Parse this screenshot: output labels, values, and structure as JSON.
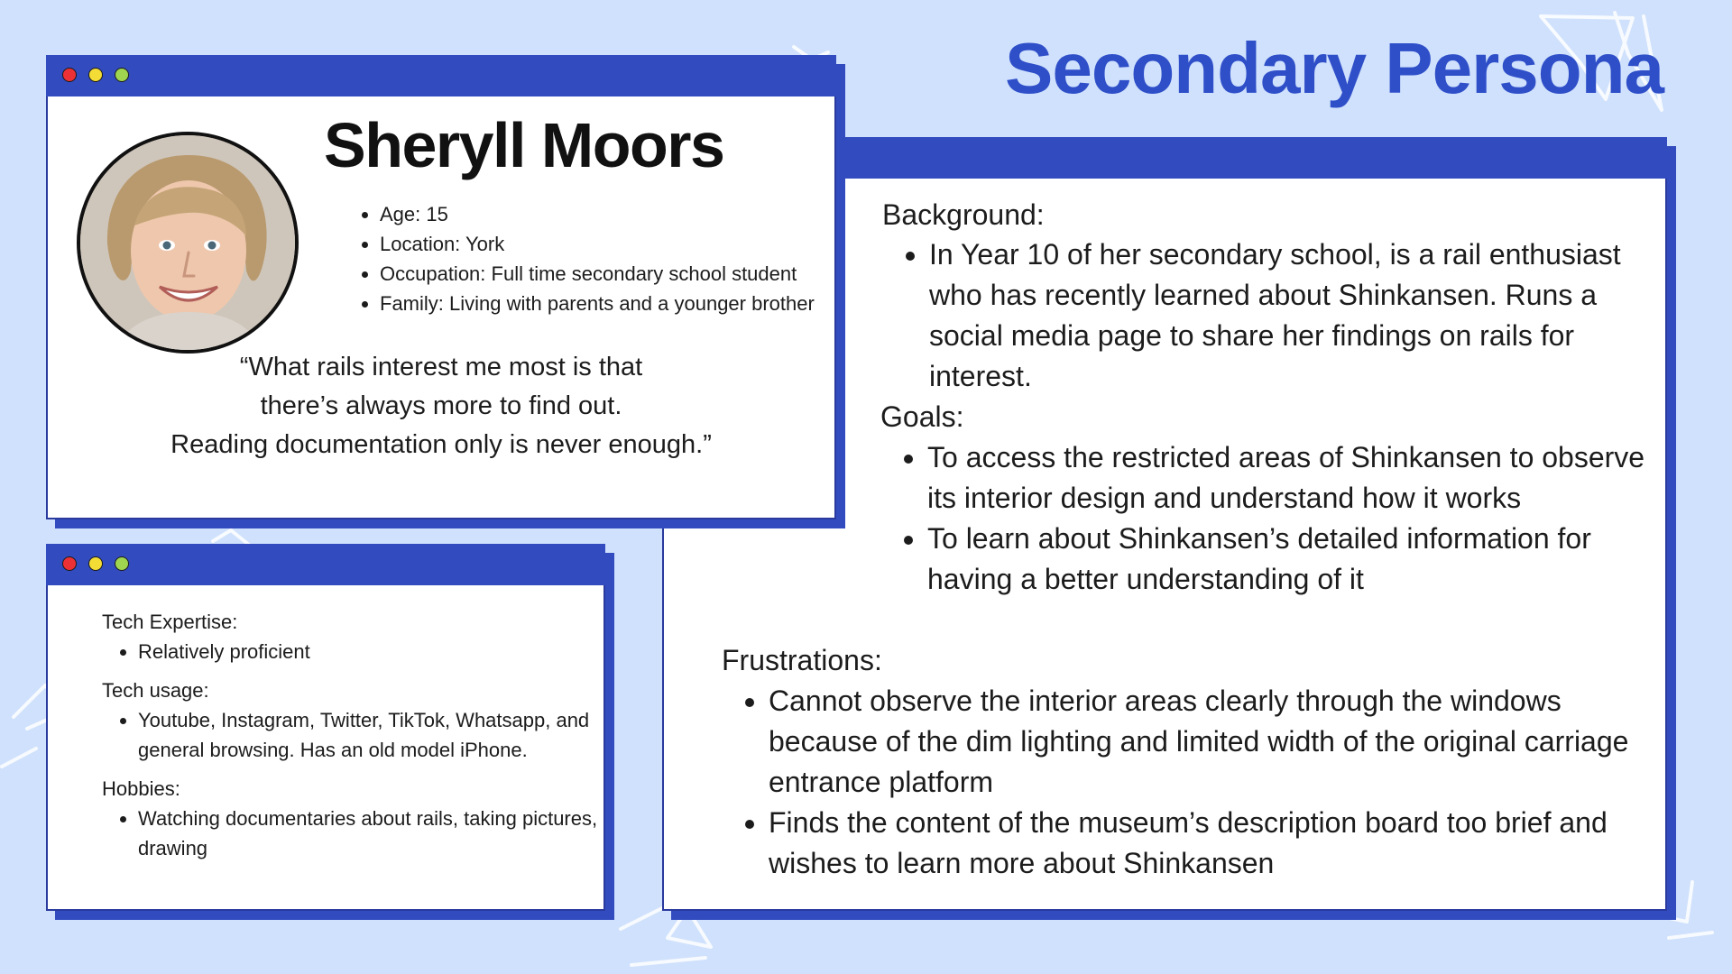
{
  "page": {
    "title": "Secondary Persona"
  },
  "colors": {
    "background": "#cfe1fc",
    "accent_blue": "#324cbf",
    "title_blue": "#2f4fc9",
    "dot_red": "#ec3136",
    "dot_yellow": "#f3dc36",
    "dot_green": "#9fd54f"
  },
  "profile": {
    "name": "Sheryll Moors",
    "avatar_icon": "user-portrait-photo",
    "facts": [
      "Age: 15",
      "Location: York",
      "Occupation: Full time secondary school student",
      "Family: Living with parents and a younger brother"
    ],
    "quote_lines": [
      "“What rails interest me most is that",
      "there’s always more to find out.",
      "Reading documentation only is never enough.”"
    ]
  },
  "tech": {
    "sections": [
      {
        "heading": "Tech Expertise:",
        "items": [
          "Relatively proficient"
        ]
      },
      {
        "heading": "Tech usage:",
        "items": [
          "Youtube, Instagram, Twitter, TikTok, Whatsapp, and general browsing. Has an old model iPhone."
        ]
      },
      {
        "heading": "Hobbies:",
        "items": [
          "Watching documentaries about rails, taking pictures, drawing"
        ]
      }
    ]
  },
  "details": {
    "background": {
      "heading": "Background:",
      "items": [
        "In Year 10 of her secondary school, is a rail enthusiast who has recently learned about Shinkansen. Runs a social media page to share her findings on rails for interest."
      ]
    },
    "goals": {
      "heading": "Goals:",
      "items": [
        "To access the restricted areas of Shinkansen to observe its interior design and understand how it works",
        "To learn about Shinkansen’s detailed information for having a better understanding of it"
      ]
    },
    "frustrations": {
      "heading": "Frustrations:",
      "items": [
        "Cannot observe the interior areas clearly through the windows because of the dim lighting and limited width of the original carriage entrance platform",
        "Finds the content of the museum’s description board too brief and wishes to learn more about Shinkansen"
      ]
    }
  }
}
